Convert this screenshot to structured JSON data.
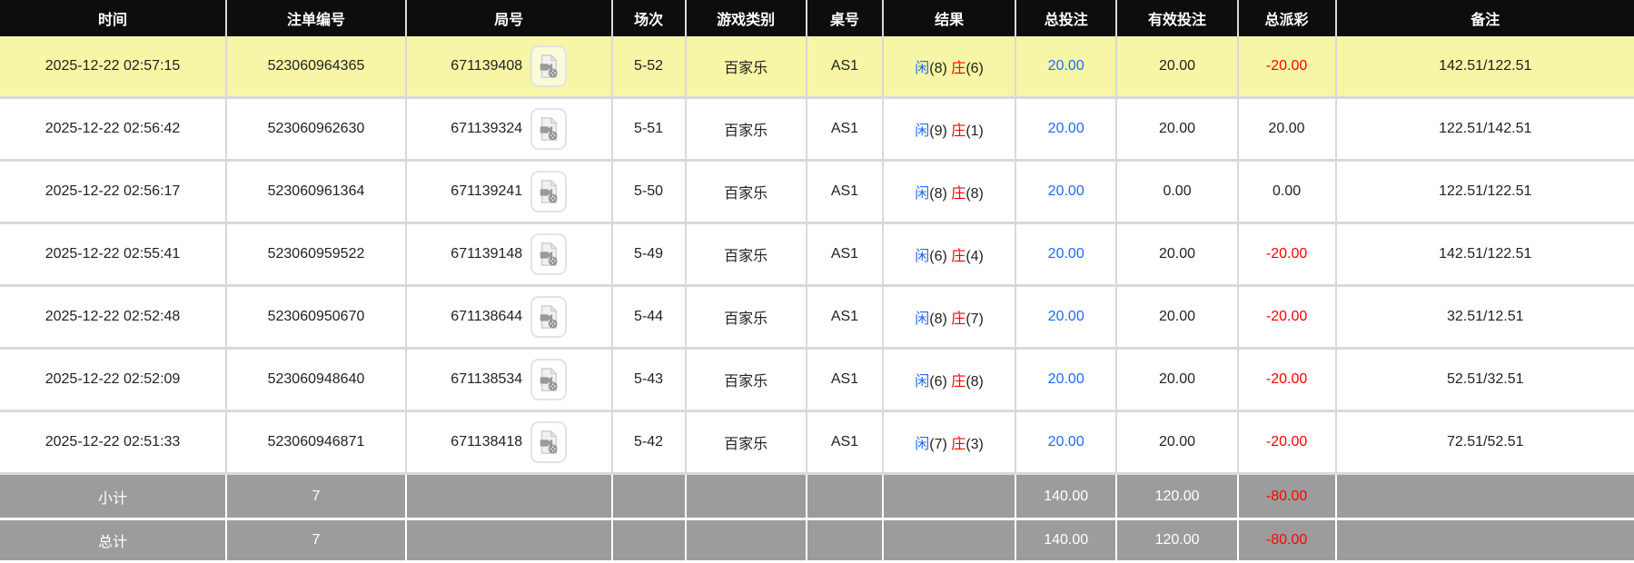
{
  "header": {
    "columns": [
      "时间",
      "注单编号",
      "局号",
      "场次",
      "游戏类别",
      "桌号",
      "结果",
      "总投注",
      "有效投注",
      "总派彩",
      "备注"
    ]
  },
  "rows": [
    {
      "time": "2025-12-22 02:57:15",
      "bet_id": "523060964365",
      "round_no": "671139408",
      "session": "5-52",
      "game_type": "百家乐",
      "table_no": "AS1",
      "result": {
        "player": "闲",
        "player_score": "(8)",
        "banker": "庄",
        "banker_score": "(6)"
      },
      "total_bet": "20.00",
      "valid_bet": "20.00",
      "payout": "-20.00",
      "remark": "142.51/122.51",
      "highlighted": true
    },
    {
      "time": "2025-12-22 02:56:42",
      "bet_id": "523060962630",
      "round_no": "671139324",
      "session": "5-51",
      "game_type": "百家乐",
      "table_no": "AS1",
      "result": {
        "player": "闲",
        "player_score": "(9)",
        "banker": "庄",
        "banker_score": "(1)"
      },
      "total_bet": "20.00",
      "valid_bet": "20.00",
      "payout": "20.00",
      "remark": "122.51/142.51",
      "highlighted": false
    },
    {
      "time": "2025-12-22 02:56:17",
      "bet_id": "523060961364",
      "round_no": "671139241",
      "session": "5-50",
      "game_type": "百家乐",
      "table_no": "AS1",
      "result": {
        "player": "闲",
        "player_score": "(8)",
        "banker": "庄",
        "banker_score": "(8)"
      },
      "total_bet": "20.00",
      "valid_bet": "0.00",
      "payout": "0.00",
      "remark": "122.51/122.51",
      "highlighted": false
    },
    {
      "time": "2025-12-22 02:55:41",
      "bet_id": "523060959522",
      "round_no": "671139148",
      "session": "5-49",
      "game_type": "百家乐",
      "table_no": "AS1",
      "result": {
        "player": "闲",
        "player_score": "(6)",
        "banker": "庄",
        "banker_score": "(4)"
      },
      "total_bet": "20.00",
      "valid_bet": "20.00",
      "payout": "-20.00",
      "remark": "142.51/122.51",
      "highlighted": false
    },
    {
      "time": "2025-12-22 02:52:48",
      "bet_id": "523060950670",
      "round_no": "671138644",
      "session": "5-44",
      "game_type": "百家乐",
      "table_no": "AS1",
      "result": {
        "player": "闲",
        "player_score": "(8)",
        "banker": "庄",
        "banker_score": "(7)"
      },
      "total_bet": "20.00",
      "valid_bet": "20.00",
      "payout": "-20.00",
      "remark": "32.51/12.51",
      "highlighted": false
    },
    {
      "time": "2025-12-22 02:52:09",
      "bet_id": "523060948640",
      "round_no": "671138534",
      "session": "5-43",
      "game_type": "百家乐",
      "table_no": "AS1",
      "result": {
        "player": "闲",
        "player_score": "(6)",
        "banker": "庄",
        "banker_score": "(8)"
      },
      "total_bet": "20.00",
      "valid_bet": "20.00",
      "payout": "-20.00",
      "remark": "52.51/32.51",
      "highlighted": false
    },
    {
      "time": "2025-12-22 02:51:33",
      "bet_id": "523060946871",
      "round_no": "671138418",
      "session": "5-42",
      "game_type": "百家乐",
      "table_no": "AS1",
      "result": {
        "player": "闲",
        "player_score": "(7)",
        "banker": "庄",
        "banker_score": "(3)"
      },
      "total_bet": "20.00",
      "valid_bet": "20.00",
      "payout": "-20.00",
      "remark": "72.51/52.51",
      "highlighted": false
    }
  ],
  "summary_rows": [
    {
      "label": "小计",
      "count": "7",
      "total_bet": "140.00",
      "valid_bet": "120.00",
      "payout": "-80.00",
      "remark": ""
    },
    {
      "label": "总计",
      "count": "7",
      "total_bet": "140.00",
      "valid_bet": "120.00",
      "payout": "-80.00",
      "remark": ""
    }
  ],
  "icons": {
    "video_replay": "video-replay-icon"
  },
  "colors": {
    "header_bg": "#0d0d0d",
    "highlight_yellow": "#f6f6a6",
    "bet_blue": "#1e6bff",
    "loss_red": "#ff0000",
    "summary_gray": "#9c9c9c"
  }
}
